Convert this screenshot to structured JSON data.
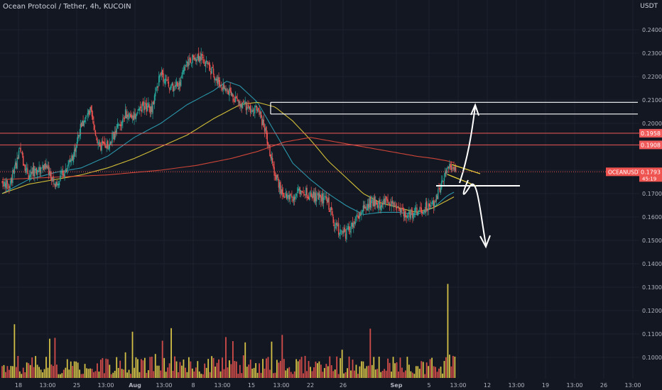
{
  "header": {
    "title": "Ocean Protocol / Tether, 4h, KUCOIN"
  },
  "axis": {
    "unit": "USDT"
  },
  "colors": {
    "background": "#131722",
    "grid": "#1e222d",
    "up": "#26a69a",
    "down": "#ef5350",
    "volume_up": "#e8d24a",
    "volume_down": "#e8524e",
    "ma_fast": "#2ea3b8",
    "ma_mid": "#e6cf3a",
    "ma_slow": "#e24a3b",
    "level_red": "#f05a5a",
    "level_white": "#ffffff"
  },
  "chart_data": {
    "type": "candlestick",
    "title": "Ocean Protocol / Tether, 4h, KUCOIN",
    "ylabel": "USDT",
    "ylim": [
      0.095,
      0.2475
    ],
    "y_ticks": [
      "0.2400",
      "0.2300",
      "0.2200",
      "0.2100",
      "0.2000",
      "0.1900",
      "0.1800",
      "0.1700",
      "0.1600",
      "0.1500",
      "0.1400",
      "0.1300",
      "0.1200",
      "0.1100",
      "0.1000"
    ],
    "x_ticks": [
      "18",
      "13:00",
      "25",
      "13:00",
      "Aug",
      "13:00",
      "8",
      "13:00",
      "15",
      "13:00",
      "22",
      "26",
      "Sep",
      "5",
      "13:00",
      "12",
      "13:00",
      "19",
      "13:00",
      "26",
      "13:00"
    ],
    "price_anchors": [
      [
        0,
        0.175
      ],
      [
        8,
        0.173
      ],
      [
        20,
        0.188
      ],
      [
        30,
        0.178
      ],
      [
        40,
        0.18
      ],
      [
        50,
        0.182
      ],
      [
        60,
        0.174
      ],
      [
        70,
        0.179
      ],
      [
        80,
        0.186
      ],
      [
        90,
        0.199
      ],
      [
        100,
        0.205
      ],
      [
        110,
        0.19
      ],
      [
        120,
        0.191
      ],
      [
        130,
        0.197
      ],
      [
        140,
        0.204
      ],
      [
        150,
        0.203
      ],
      [
        160,
        0.208
      ],
      [
        170,
        0.206
      ],
      [
        180,
        0.222
      ],
      [
        190,
        0.215
      ],
      [
        200,
        0.216
      ],
      [
        212,
        0.227
      ],
      [
        222,
        0.229
      ],
      [
        232,
        0.226
      ],
      [
        242,
        0.22
      ],
      [
        252,
        0.215
      ],
      [
        262,
        0.212
      ],
      [
        272,
        0.208
      ],
      [
        282,
        0.206
      ],
      [
        292,
        0.205
      ],
      [
        300,
        0.195
      ],
      [
        308,
        0.18
      ],
      [
        318,
        0.17
      ],
      [
        328,
        0.168
      ],
      [
        340,
        0.172
      ],
      [
        350,
        0.169
      ],
      [
        360,
        0.169
      ],
      [
        370,
        0.166
      ],
      [
        380,
        0.155
      ],
      [
        390,
        0.153
      ],
      [
        400,
        0.157
      ],
      [
        410,
        0.163
      ],
      [
        420,
        0.167
      ],
      [
        430,
        0.165
      ],
      [
        440,
        0.167
      ],
      [
        450,
        0.164
      ],
      [
        460,
        0.161
      ],
      [
        470,
        0.162
      ],
      [
        480,
        0.164
      ],
      [
        490,
        0.166
      ],
      [
        495,
        0.17
      ],
      [
        500,
        0.176
      ],
      [
        507,
        0.181
      ],
      [
        515,
        0.1795
      ]
    ],
    "moving_averages": [
      {
        "name": "fast",
        "anchors": [
          [
            0,
            0.17
          ],
          [
            30,
            0.176
          ],
          [
            60,
            0.179
          ],
          [
            90,
            0.181
          ],
          [
            120,
            0.186
          ],
          [
            150,
            0.194
          ],
          [
            180,
            0.2
          ],
          [
            210,
            0.208
          ],
          [
            240,
            0.214
          ],
          [
            255,
            0.218
          ],
          [
            270,
            0.216
          ],
          [
            290,
            0.209
          ],
          [
            310,
            0.196
          ],
          [
            330,
            0.183
          ],
          [
            350,
            0.176
          ],
          [
            370,
            0.17
          ],
          [
            390,
            0.165
          ],
          [
            410,
            0.161
          ],
          [
            430,
            0.162
          ],
          [
            450,
            0.162
          ],
          [
            470,
            0.161
          ],
          [
            490,
            0.164
          ],
          [
            505,
            0.169
          ],
          [
            515,
            0.171
          ]
        ]
      },
      {
        "name": "mid",
        "anchors": [
          [
            0,
            0.17
          ],
          [
            30,
            0.174
          ],
          [
            60,
            0.176
          ],
          [
            90,
            0.178
          ],
          [
            120,
            0.181
          ],
          [
            150,
            0.185
          ],
          [
            180,
            0.19
          ],
          [
            210,
            0.195
          ],
          [
            240,
            0.202
          ],
          [
            270,
            0.208
          ],
          [
            290,
            0.209
          ],
          [
            310,
            0.207
          ],
          [
            330,
            0.201
          ],
          [
            350,
            0.193
          ],
          [
            370,
            0.184
          ],
          [
            390,
            0.177
          ],
          [
            410,
            0.17
          ],
          [
            430,
            0.166
          ],
          [
            450,
            0.164
          ],
          [
            470,
            0.162
          ],
          [
            490,
            0.164
          ],
          [
            505,
            0.167
          ],
          [
            515,
            0.169
          ]
        ]
      },
      {
        "name": "slow",
        "anchors": [
          [
            0,
            0.176
          ],
          [
            60,
            0.177
          ],
          [
            120,
            0.178
          ],
          [
            180,
            0.18
          ],
          [
            220,
            0.182
          ],
          [
            260,
            0.185
          ],
          [
            290,
            0.188
          ],
          [
            320,
            0.192
          ],
          [
            350,
            0.194
          ],
          [
            380,
            0.192
          ],
          [
            410,
            0.19
          ],
          [
            440,
            0.188
          ],
          [
            470,
            0.186
          ],
          [
            490,
            0.185
          ],
          [
            505,
            0.184
          ],
          [
            515,
            0.183
          ]
        ]
      }
    ],
    "volume_peaks": [
      [
        231,
        46
      ],
      [
        239,
        50
      ],
      [
        217,
        32
      ],
      [
        192,
        27
      ],
      [
        506,
        51
      ],
      [
        117,
        26
      ]
    ],
    "levels": [
      {
        "price": "0.1958",
        "y": 0.1958,
        "color": "red"
      },
      {
        "price": "0.1908",
        "y": 0.1908,
        "color": "red"
      },
      {
        "price": "0.2090",
        "y": 0.209,
        "color": "white"
      },
      {
        "price": "0.2040",
        "y": 0.204,
        "color": "white"
      }
    ],
    "current_price": "0.1793",
    "current_price_value": 0.1793,
    "countdown": "45:19",
    "symbol": "OCEANUSDT"
  }
}
